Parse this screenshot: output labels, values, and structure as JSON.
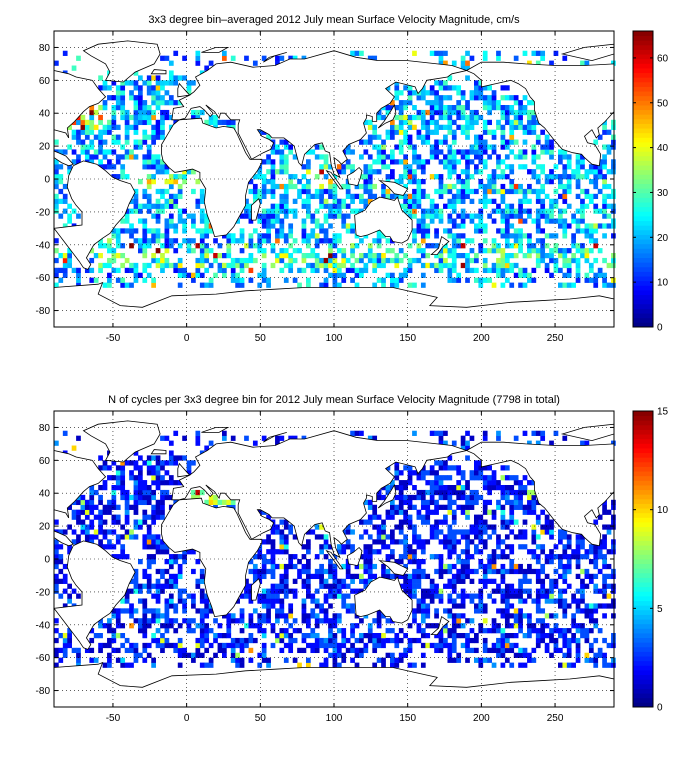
{
  "chart_data": [
    {
      "type": "heatmap",
      "title": "3x3 degree bin–averaged 2012 July mean Surface Velocity Magnitude, cm/s",
      "xlim": [
        -90,
        290
      ],
      "ylim": [
        -90,
        90
      ],
      "xticks": [
        -50,
        0,
        50,
        100,
        150,
        200,
        250
      ],
      "yticks": [
        -80,
        -60,
        -40,
        -20,
        0,
        20,
        40,
        60,
        80
      ],
      "grid": true,
      "colormap": "jet",
      "bin_size_deg": 3,
      "colorbar": {
        "range": [
          0,
          66
        ],
        "ticks": [
          0,
          10,
          20,
          30,
          40,
          50,
          60
        ],
        "placement": "right"
      },
      "value_distribution": "mostly 10-30 cm/s; high values (40-66) along western boundary currents, equatorial Atlantic and Indian Ocean",
      "colors": {
        "coast": "#000000",
        "low": "#00008f",
        "high": "#800000"
      }
    },
    {
      "type": "heatmap",
      "title": "N of cycles per 3x3 degree bin for 2012 July mean Surface Velocity Magnitude (7798 in total)",
      "xlim": [
        -90,
        290
      ],
      "ylim": [
        -90,
        90
      ],
      "xticks": [
        -50,
        0,
        50,
        100,
        150,
        200,
        250
      ],
      "yticks": [
        -80,
        -60,
        -40,
        -20,
        0,
        20,
        40,
        60,
        80
      ],
      "grid": true,
      "colormap": "jet",
      "bin_size_deg": 3,
      "colorbar": {
        "range": [
          0,
          15
        ],
        "ticks": [
          0,
          5,
          10,
          15
        ],
        "placement": "right"
      },
      "value_distribution": "mostly 1-4 cycles per bin; occasional higher counts (5-15) in Mediterranean and coastal seas",
      "colors": {
        "coast": "#000000",
        "low": "#00008f",
        "high": "#800000"
      }
    }
  ]
}
